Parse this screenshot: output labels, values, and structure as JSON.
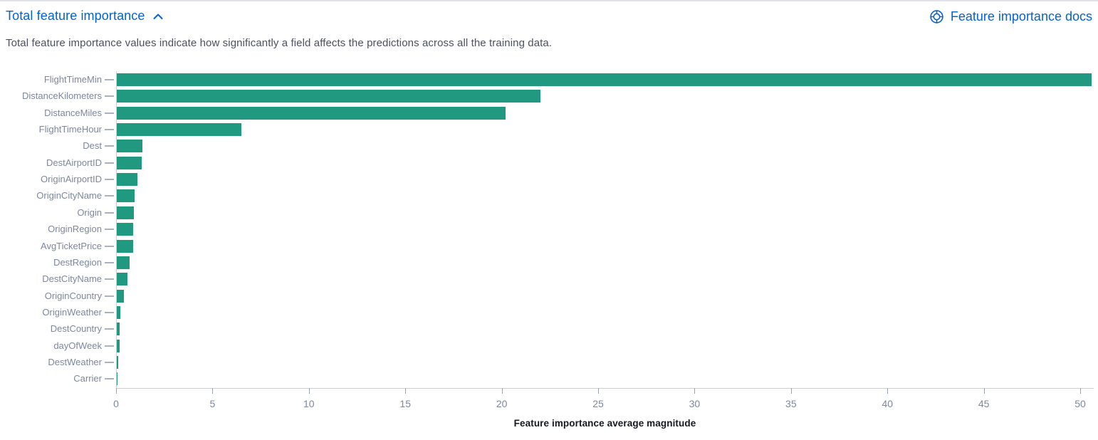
{
  "header": {
    "title": "Total feature importance",
    "collapse_icon": "chevron-up",
    "docs_link_label": "Feature importance docs",
    "docs_icon": "documentation-lifebuoy"
  },
  "description": "Total feature importance values indicate how significantly a field affects the predictions across all the training data.",
  "colors": {
    "link_blue": "#0562d2",
    "bar_teal": "#219880",
    "axis_line": "#c9cedb",
    "tick_mark": "#98a2b3",
    "axis_label": "#7d87a0",
    "description_text": "#4b515f",
    "axis_title_text": "#16191f",
    "top_rule": "#dfe2ec"
  },
  "chart_data": {
    "type": "bar",
    "orientation": "horizontal",
    "title": "",
    "xlabel": "Feature importance average magnitude",
    "ylabel": "",
    "grid": false,
    "legend": false,
    "xlim": [
      0,
      50.7
    ],
    "xticks": [
      0,
      5,
      10,
      15,
      20,
      25,
      30,
      35,
      40,
      45,
      50
    ],
    "bar_color": "#219880",
    "categories": [
      "FlightTimeMin",
      "DistanceKilometers",
      "DistanceMiles",
      "FlightTimeHour",
      "Dest",
      "DestAirportID",
      "OriginAirportID",
      "OriginCityName",
      "Origin",
      "OriginRegion",
      "AvgTicketPrice",
      "DestRegion",
      "DestCityName",
      "OriginCountry",
      "OriginWeather",
      "DestCountry",
      "dayOfWeek",
      "DestWeather",
      "Carrier"
    ],
    "values": [
      50.6,
      22.0,
      20.2,
      6.5,
      1.37,
      1.32,
      1.1,
      0.97,
      0.94,
      0.9,
      0.87,
      0.71,
      0.6,
      0.42,
      0.21,
      0.19,
      0.17,
      0.12,
      0.05
    ]
  }
}
